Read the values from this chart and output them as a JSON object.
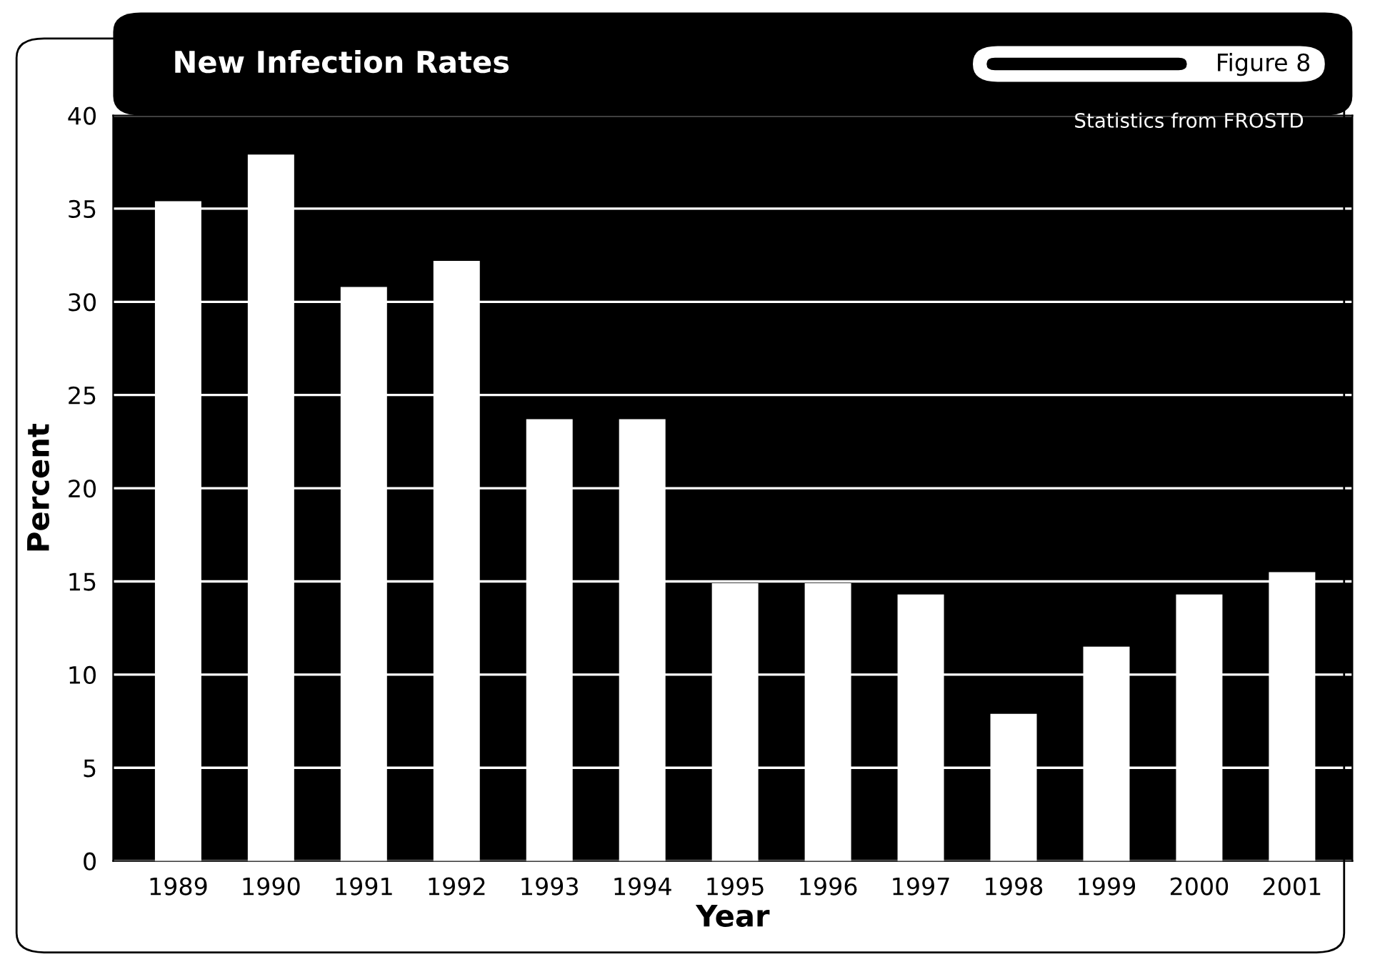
{
  "chart_data": {
    "type": "bar",
    "title": "New Infection Rates",
    "xlabel": "Year",
    "ylabel": "Percent",
    "annotations": [
      "Figure 8",
      "Statistics from FROSTD"
    ],
    "categories": [
      "1989",
      "1990",
      "1991",
      "1992",
      "1993",
      "1994",
      "1995",
      "1996",
      "1997",
      "1998",
      "1999",
      "2000",
      "2001"
    ],
    "values": [
      35.4,
      37.9,
      30.8,
      32.2,
      23.7,
      23.7,
      14.9,
      14.9,
      14.3,
      7.9,
      11.5,
      14.3,
      15.5
    ],
    "color": "#ffffff",
    "ylim": [
      0,
      40
    ],
    "yticks": [
      0,
      5,
      10,
      15,
      20,
      25,
      30,
      35,
      40
    ],
    "grid": "y",
    "legend": false
  }
}
